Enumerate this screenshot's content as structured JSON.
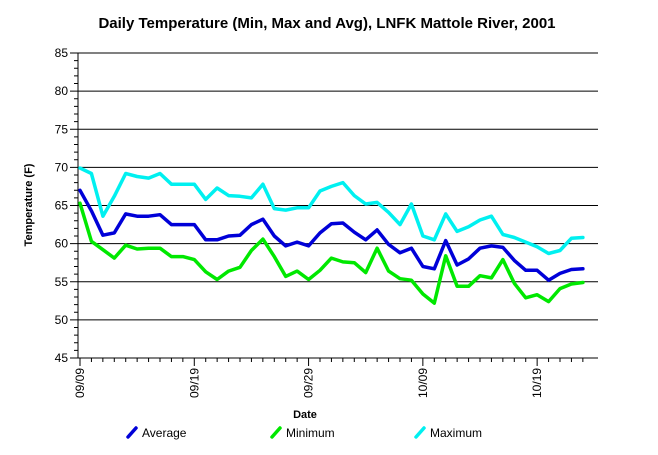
{
  "chart_data": {
    "type": "line",
    "title": "Daily Temperature (Min, Max and Avg), LNFK Mattole River, 2001",
    "xlabel": "Date",
    "ylabel": "Temperature (F)",
    "ylim": [
      45,
      85
    ],
    "yticks": [
      45,
      50,
      55,
      60,
      65,
      70,
      75,
      80,
      85
    ],
    "grid": true,
    "legend_position": "bottom",
    "x": [
      "09/09",
      "09/10",
      "09/11",
      "09/12",
      "09/13",
      "09/14",
      "09/15",
      "09/16",
      "09/17",
      "09/18",
      "09/19",
      "09/20",
      "09/21",
      "09/22",
      "09/23",
      "09/24",
      "09/25",
      "09/26",
      "09/27",
      "09/28",
      "09/29",
      "09/30",
      "10/01",
      "10/02",
      "10/03",
      "10/04",
      "10/05",
      "10/06",
      "10/07",
      "10/08",
      "10/09",
      "10/10",
      "10/11",
      "10/12",
      "10/13",
      "10/14",
      "10/15",
      "10/16",
      "10/17",
      "10/18",
      "10/19",
      "10/20",
      "10/21",
      "10/22",
      "10/23"
    ],
    "xtick_labels": [
      "09/09",
      "09/19",
      "09/29",
      "10/09",
      "10/19"
    ],
    "series": [
      {
        "name": "Average",
        "color": "#0000d8",
        "values": [
          67.0,
          64.3,
          61.1,
          61.4,
          63.9,
          63.6,
          63.6,
          63.8,
          62.5,
          62.5,
          62.5,
          60.5,
          60.5,
          61.0,
          61.1,
          62.5,
          63.2,
          61.0,
          59.7,
          60.2,
          59.7,
          61.4,
          62.6,
          62.7,
          61.5,
          60.5,
          61.8,
          59.9,
          58.8,
          59.4,
          57.0,
          56.7,
          60.4,
          57.2,
          58.0,
          59.4,
          59.7,
          59.5,
          57.8,
          56.5,
          56.5,
          55.2,
          56.1,
          56.6,
          56.7
        ]
      },
      {
        "name": "Minimum",
        "color": "#00e800",
        "values": [
          65.3,
          60.3,
          59.2,
          58.1,
          59.8,
          59.3,
          59.4,
          59.4,
          58.3,
          58.3,
          57.9,
          56.3,
          55.3,
          56.4,
          56.9,
          59.1,
          60.6,
          58.3,
          55.7,
          56.4,
          55.3,
          56.5,
          58.1,
          57.6,
          57.5,
          56.2,
          59.4,
          56.4,
          55.4,
          55.2,
          53.4,
          52.2,
          58.4,
          54.4,
          54.4,
          55.8,
          55.5,
          57.9,
          54.8,
          52.9,
          53.3,
          52.4,
          54.1,
          54.7,
          54.9
        ]
      },
      {
        "name": "Maximum",
        "color": "#00f0f0",
        "values": [
          69.9,
          69.2,
          63.6,
          66.2,
          69.2,
          68.8,
          68.6,
          69.2,
          67.8,
          67.8,
          67.8,
          65.8,
          67.3,
          66.3,
          66.2,
          66.0,
          67.8,
          64.6,
          64.4,
          64.7,
          64.7,
          66.9,
          67.5,
          68.0,
          66.3,
          65.2,
          65.4,
          64.1,
          62.5,
          65.2,
          61.0,
          60.5,
          63.9,
          61.6,
          62.2,
          63.1,
          63.6,
          61.2,
          60.8,
          60.2,
          59.6,
          58.7,
          59.1,
          60.7,
          60.8
        ]
      }
    ]
  }
}
